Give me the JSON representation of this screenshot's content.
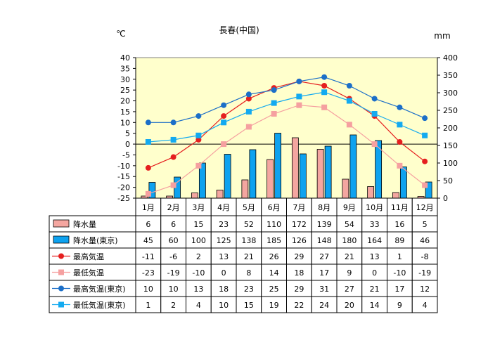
{
  "chart_data": {
    "type": "bar+line",
    "title": "長春(中国)",
    "left_axis_unit": "℃",
    "right_axis_unit": "mm",
    "left_axis": {
      "min": -25,
      "max": 40,
      "step": 5,
      "ticks": [
        "40",
        "35",
        "30",
        "25",
        "20",
        "15",
        "10",
        "5",
        "0",
        "-5",
        "-10",
        "-15",
        "-20",
        "-25"
      ]
    },
    "right_axis": {
      "min": 0,
      "max": 400,
      "step": 50,
      "ticks": [
        "400",
        "350",
        "300",
        "250",
        "200",
        "150",
        "100",
        "50",
        "0"
      ]
    },
    "categories": [
      "1月",
      "2月",
      "3月",
      "4月",
      "5月",
      "6月",
      "7月",
      "8月",
      "9月",
      "10月",
      "11月",
      "12月"
    ],
    "series": [
      {
        "key": "precip",
        "name": "降水量",
        "kind": "bar",
        "axis": "right",
        "color": "#f4a6a0",
        "values": [
          6,
          6,
          15,
          23,
          52,
          110,
          172,
          139,
          54,
          33,
          16,
          5
        ],
        "labels": [
          "6",
          "6",
          "15",
          "23",
          "52",
          "110",
          "172",
          "139",
          "54",
          "33",
          "16",
          "5"
        ]
      },
      {
        "key": "precip_tokyo",
        "name": "降水量(東京)",
        "kind": "bar",
        "axis": "right",
        "color": "#0ea2ef",
        "values": [
          45,
          60,
          100,
          125,
          138,
          185,
          126,
          148,
          180,
          164,
          89,
          46
        ],
        "labels": [
          "45",
          "60",
          "100",
          "125",
          "138",
          "185",
          "126",
          "148",
          "180",
          "164",
          "89",
          "46"
        ]
      },
      {
        "key": "max_temp",
        "name": "最高気温",
        "kind": "line",
        "axis": "left",
        "color": "#e51f1f",
        "marker": "circle",
        "values": [
          -11,
          -6,
          2,
          13,
          21,
          26,
          29,
          27,
          21,
          13,
          1,
          -8
        ],
        "labels": [
          "-11",
          "-6",
          "2",
          "13",
          "21",
          "26",
          "29",
          "27",
          "21",
          "13",
          "1",
          "-8"
        ]
      },
      {
        "key": "min_temp",
        "name": "最低気温",
        "kind": "line",
        "axis": "left",
        "color": "#f5a0a0",
        "marker": "square",
        "values": [
          -23,
          -19,
          -10,
          0,
          8,
          14,
          18,
          17,
          9,
          0,
          -10,
          -19
        ],
        "labels": [
          "-23",
          "-19",
          "-10",
          "0",
          "8",
          "14",
          "18",
          "17",
          "9",
          "0",
          "-10",
          "-19"
        ]
      },
      {
        "key": "max_temp_tokyo",
        "name": "最高気温(東京)",
        "kind": "line",
        "axis": "left",
        "color": "#1c6fc8",
        "marker": "circle",
        "values": [
          10,
          10,
          13,
          18,
          23,
          25,
          29,
          31,
          27,
          21,
          17,
          12
        ],
        "labels": [
          "10",
          "10",
          "13",
          "18",
          "23",
          "25",
          "29",
          "31",
          "27",
          "21",
          "17",
          "12"
        ]
      },
      {
        "key": "min_temp_tokyo",
        "name": "最低気温(東京)",
        "kind": "line",
        "axis": "left",
        "color": "#13aaf0",
        "marker": "square",
        "values": [
          1,
          2,
          4,
          10,
          15,
          19,
          22,
          24,
          20,
          14,
          9,
          4
        ],
        "labels": [
          "1",
          "2",
          "4",
          "10",
          "15",
          "19",
          "22",
          "24",
          "20",
          "14",
          "9",
          "4"
        ]
      }
    ],
    "plot_background": "#ffffcc",
    "grid": false,
    "legend": "table-below"
  }
}
